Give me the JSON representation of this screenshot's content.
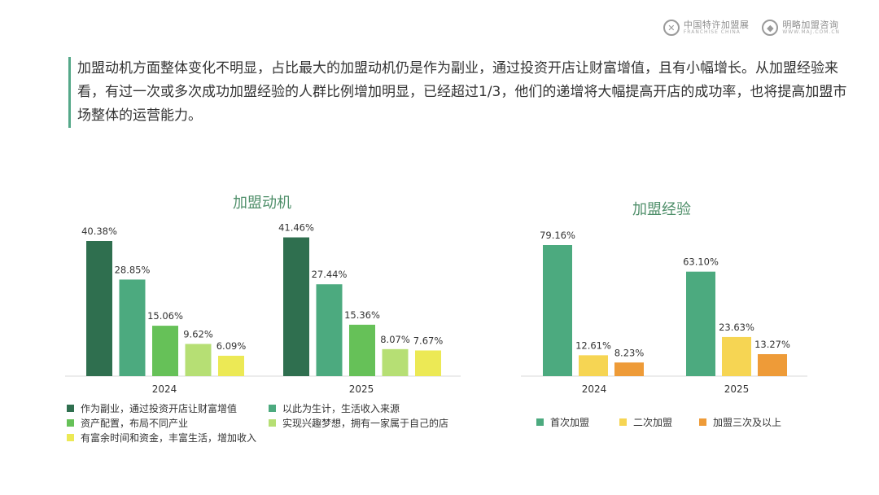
{
  "header": {
    "logo1": {
      "cn": "中国特许加盟展",
      "en": "FRANCHISE CHINA"
    },
    "logo2": {
      "cn": "明略加盟咨询",
      "en": "WWW.MAJ.COM.CN"
    }
  },
  "summary": "加盟动机方面整体变化不明显，占比最大的加盟动机仍是作为副业，通过投资开店让财富增值，且有小幅增长。从加盟经验来看，有过一次或多次成功加盟经验的人群比例增加明显，已经超过1/3，他们的递增将大幅提高开店的成功率，也将提高加盟市场整体的运营能力。",
  "chart_data": [
    {
      "type": "bar",
      "title": "加盟动机",
      "categories": [
        "2024",
        "2025"
      ],
      "unit": "%",
      "series": [
        {
          "name": "作为副业，通过投资开店让财富增值",
          "color": "#2f6f4f",
          "values": [
            40.38,
            41.46
          ]
        },
        {
          "name": "以此为生计，生活收入来源",
          "color": "#4caa7f",
          "values": [
            28.85,
            27.44
          ]
        },
        {
          "name": "资产配置，布局不同产业",
          "color": "#66c158",
          "values": [
            15.06,
            15.36
          ]
        },
        {
          "name": "实现兴趣梦想，拥有一家属于自己的店",
          "color": "#b6df74",
          "values": [
            9.62,
            8.07
          ]
        },
        {
          "name": "有富余时间和资金，丰富生活，增加收入",
          "color": "#ece955",
          "values": [
            6.09,
            7.67
          ]
        }
      ],
      "labels": [
        [
          "40.38%",
          "28.85%",
          "15.06%",
          "9.62%",
          "6.09%"
        ],
        [
          "41.46%",
          "27.44%",
          "15.36%",
          "8.07%",
          "7.67%"
        ]
      ]
    },
    {
      "type": "bar",
      "title": "加盟经验",
      "categories": [
        "2024",
        "2025"
      ],
      "unit": "%",
      "series": [
        {
          "name": "首次加盟",
          "color": "#4caa7f",
          "values": [
            79.16,
            63.1
          ]
        },
        {
          "name": "二次加盟",
          "color": "#f6d553",
          "values": [
            12.61,
            23.63
          ]
        },
        {
          "name": "加盟三次及以上",
          "color": "#ee9b38",
          "values": [
            8.23,
            13.27
          ]
        }
      ],
      "labels": [
        [
          "79.16%",
          "12.61%",
          "8.23%"
        ],
        [
          "63.10%",
          "23.63%",
          "13.27%"
        ]
      ]
    }
  ]
}
